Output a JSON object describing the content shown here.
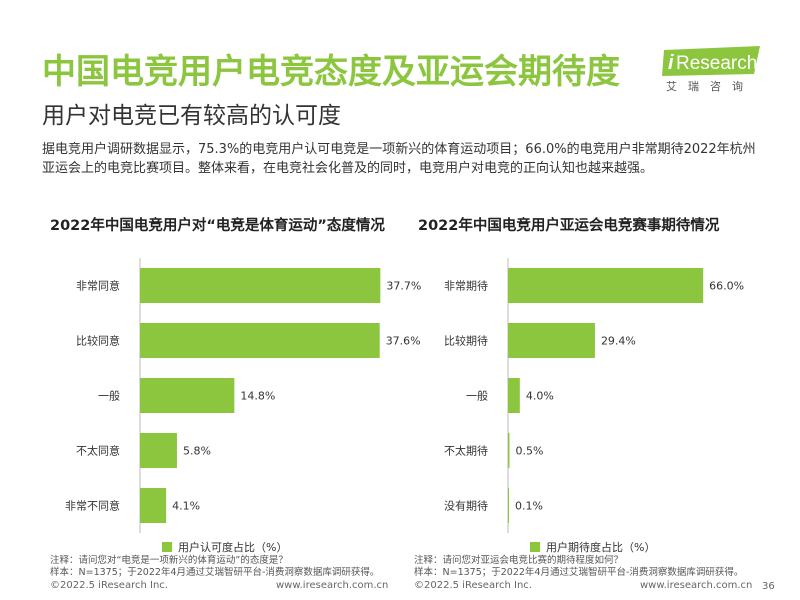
{
  "title": "中国电竞用户电竞态度及亚运会期待度",
  "subtitle": "用户对电竞已有较高的认可度",
  "summary": "据电竞用户调研数据显示，75.3%的电竞用户认可电竞是一项新兴的体育运动项目；66.0%的电竞用户非常期待2022年杭州亚运会上的电竞比赛项目。整体来看，在电竞社会化普及的同时，电竞用户对电竞的正向认知也越来越强。",
  "logo": {
    "text_i": "i",
    "text_rest": "Research",
    "cn": "艾瑞咨询"
  },
  "colors": {
    "accent": "#8cc63f",
    "bar": "#8cc63f"
  },
  "chart_data": [
    {
      "type": "bar",
      "orientation": "horizontal",
      "title": "2022年中国电竞用户对“电竞是体育运动”态度情况",
      "categories": [
        "非常同意",
        "比较同意",
        "一般",
        "不太同意",
        "非常不同意"
      ],
      "series": [
        {
          "name": "用户认可度占比（%）",
          "values": [
            37.7,
            37.6,
            14.8,
            5.8,
            4.1
          ],
          "labels": [
            "37.7%",
            "37.6%",
            "14.8%",
            "5.8%",
            "4.1%"
          ]
        }
      ],
      "xlim": [
        0,
        40
      ],
      "grid": false,
      "legend": "bottom"
    },
    {
      "type": "bar",
      "orientation": "horizontal",
      "title": "2022年中国电竞用户亚运会电竞赛事期待情况",
      "categories": [
        "非常期待",
        "比较期待",
        "一般",
        "不太期待",
        "没有期待"
      ],
      "series": [
        {
          "name": "用户期待度占比（%）",
          "values": [
            66.0,
            29.4,
            4.0,
            0.5,
            0.1
          ],
          "labels": [
            "66.0%",
            "29.4%",
            "4.0%",
            "0.5%",
            "0.1%"
          ]
        }
      ],
      "xlim": [
        0,
        70
      ],
      "grid": false,
      "legend": "bottom"
    }
  ],
  "notes": [
    {
      "line1": "注释：请问您对“电竞是一项新兴的体育运动”的态度是？",
      "line2": "样本：N=1375；于2022年4月通过艾瑞智研平台-消费洞察数据库调研获得。"
    },
    {
      "line1": "注释：请问您对亚运会电竞比赛的期待程度如何？",
      "line2": "样本：N=1375；于2022年4月通过艾瑞智研平台-消费洞察数据库调研获得。"
    }
  ],
  "footer": {
    "copyright": "©2022.5 iResearch Inc.",
    "website": "www.iresearch.com.cn",
    "page_number": "36"
  }
}
